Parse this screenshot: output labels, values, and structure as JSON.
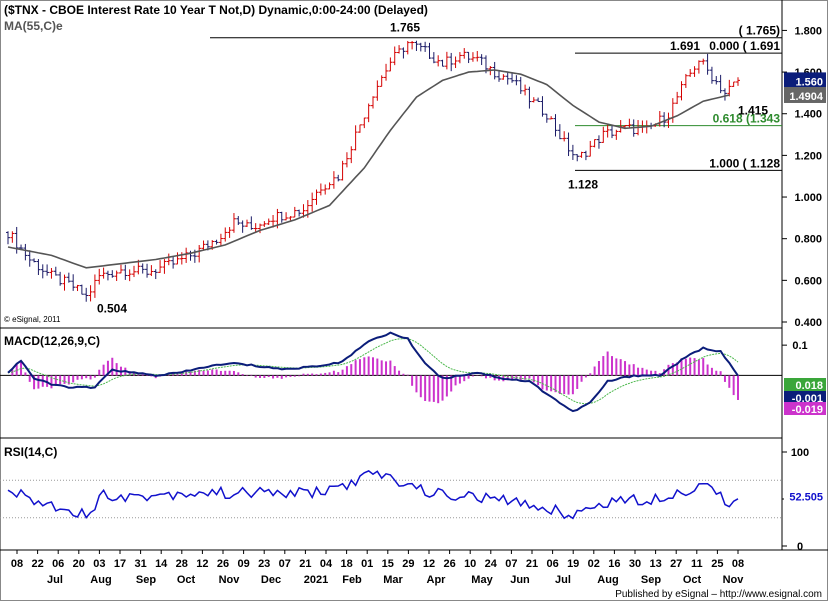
{
  "title": "($TNX - CBOE Interest Rate 10 Year T Not,D) Dynamic,0:00-24:00 (Delayed)",
  "ma_label": "MA(55,C)e",
  "macd_label": "MACD(12,26,9,C)",
  "rsi_label": "RSI(14,C)",
  "copyright": "© eSignal, 2011",
  "footer": "Published by eSignal – http://www.esignal.com",
  "colors": {
    "up": "#d40000",
    "down": "#1a1a66",
    "ma": "#555555",
    "macd": "#0b1d7a",
    "signal": "#4cb84c",
    "hist": "#cc33cc",
    "rsi": "#1111cc",
    "fib_top": "#000000",
    "fib_mid": "#2e8b2e",
    "fib_bot": "#000000"
  },
  "chart_data": [
    {
      "type": "candlestick",
      "name": "price",
      "ylim": [
        0.4,
        1.85
      ],
      "yticks": [
        "1.800",
        "1.600",
        "1.400",
        "1.200",
        "1.000",
        "0.800",
        "0.600",
        "0.400"
      ],
      "close_path": [
        [
          0,
          0.83
        ],
        [
          5,
          0.7
        ],
        [
          10,
          0.62
        ],
        [
          15,
          0.57
        ],
        [
          18,
          0.52
        ],
        [
          21,
          0.62
        ],
        [
          26,
          0.65
        ],
        [
          32,
          0.64
        ],
        [
          38,
          0.68
        ],
        [
          43,
          0.73
        ],
        [
          48,
          0.8
        ],
        [
          52,
          0.88
        ],
        [
          56,
          0.85
        ],
        [
          60,
          0.9
        ],
        [
          64,
          0.92
        ],
        [
          68,
          0.94
        ],
        [
          72,
          1.05
        ],
        [
          76,
          1.1
        ],
        [
          80,
          1.3
        ],
        [
          84,
          1.5
        ],
        [
          88,
          1.65
        ],
        [
          92,
          1.74
        ],
        [
          96,
          1.7
        ],
        [
          100,
          1.64
        ],
        [
          104,
          1.68
        ],
        [
          108,
          1.66
        ],
        [
          112,
          1.6
        ],
        [
          116,
          1.56
        ],
        [
          120,
          1.47
        ],
        [
          124,
          1.4
        ],
        [
          128,
          1.26
        ],
        [
          131,
          1.18
        ],
        [
          134,
          1.24
        ],
        [
          137,
          1.3
        ],
        [
          142,
          1.33
        ],
        [
          147,
          1.32
        ],
        [
          152,
          1.4
        ],
        [
          156,
          1.56
        ],
        [
          159,
          1.66
        ],
        [
          162,
          1.58
        ],
        [
          165,
          1.5
        ],
        [
          168,
          1.56
        ]
      ],
      "ma_path": [
        [
          0,
          0.76
        ],
        [
          10,
          0.72
        ],
        [
          18,
          0.66
        ],
        [
          26,
          0.68
        ],
        [
          34,
          0.7
        ],
        [
          42,
          0.73
        ],
        [
          50,
          0.77
        ],
        [
          58,
          0.84
        ],
        [
          66,
          0.89
        ],
        [
          74,
          0.96
        ],
        [
          82,
          1.14
        ],
        [
          88,
          1.32
        ],
        [
          94,
          1.48
        ],
        [
          100,
          1.56
        ],
        [
          106,
          1.6
        ],
        [
          112,
          1.61
        ],
        [
          118,
          1.59
        ],
        [
          124,
          1.54
        ],
        [
          130,
          1.44
        ],
        [
          136,
          1.36
        ],
        [
          142,
          1.33
        ],
        [
          148,
          1.34
        ],
        [
          154,
          1.39
        ],
        [
          160,
          1.46
        ],
        [
          166,
          1.49
        ]
      ],
      "last_price": "1.560",
      "ma_value": "1.4904",
      "annotations": [
        "1.765",
        "0.504",
        "1.128",
        "1.691",
        "1.415"
      ],
      "fib_levels": [
        {
          "text": "( 1.765)",
          "value": 1.765
        },
        {
          "text": "0.000 ( 1.691",
          "value": 1.691
        },
        {
          "text": "0.618 (1.343",
          "value": 1.343
        },
        {
          "text": "1.000 ( 1.128",
          "value": 1.128
        }
      ]
    },
    {
      "type": "line",
      "name": "MACD(12,26,9,C)",
      "ylim": [
        -0.2,
        0.15
      ],
      "yticks": [
        "0.1"
      ],
      "macd_path": [
        [
          0,
          0.01
        ],
        [
          3,
          0.05
        ],
        [
          6,
          -0.01
        ],
        [
          10,
          -0.03
        ],
        [
          15,
          -0.04
        ],
        [
          20,
          -0.04
        ],
        [
          24,
          0.02
        ],
        [
          28,
          0.01
        ],
        [
          34,
          0.0
        ],
        [
          40,
          0.01
        ],
        [
          46,
          0.03
        ],
        [
          52,
          0.04
        ],
        [
          58,
          0.03
        ],
        [
          64,
          0.02
        ],
        [
          70,
          0.03
        ],
        [
          76,
          0.04
        ],
        [
          80,
          0.08
        ],
        [
          84,
          0.12
        ],
        [
          88,
          0.14
        ],
        [
          92,
          0.12
        ],
        [
          96,
          0.04
        ],
        [
          100,
          -0.01
        ],
        [
          104,
          0.0
        ],
        [
          108,
          0.01
        ],
        [
          114,
          -0.01
        ],
        [
          120,
          -0.02
        ],
        [
          126,
          -0.08
        ],
        [
          130,
          -0.12
        ],
        [
          134,
          -0.09
        ],
        [
          138,
          -0.02
        ],
        [
          144,
          0.0
        ],
        [
          150,
          0.0
        ],
        [
          156,
          0.06
        ],
        [
          160,
          0.09
        ],
        [
          164,
          0.08
        ],
        [
          168,
          -0.002
        ]
      ],
      "signal_value": "0.018",
      "macd_value": "-0.001",
      "hist_value": "-0.019"
    },
    {
      "type": "line",
      "name": "RSI(14,C)",
      "ylim": [
        0,
        100
      ],
      "yticks": [
        "100",
        "50",
        "0"
      ],
      "levels": [
        70,
        30
      ],
      "rsi_path": [
        [
          0,
          60
        ],
        [
          4,
          52
        ],
        [
          8,
          45
        ],
        [
          14,
          40
        ],
        [
          18,
          33
        ],
        [
          22,
          55
        ],
        [
          30,
          52
        ],
        [
          36,
          55
        ],
        [
          44,
          57
        ],
        [
          52,
          56
        ],
        [
          60,
          57
        ],
        [
          66,
          56
        ],
        [
          72,
          58
        ],
        [
          78,
          65
        ],
        [
          84,
          77
        ],
        [
          88,
          72
        ],
        [
          92,
          66
        ],
        [
          96,
          58
        ],
        [
          100,
          55
        ],
        [
          104,
          53
        ],
        [
          108,
          52
        ],
        [
          114,
          48
        ],
        [
          120,
          44
        ],
        [
          126,
          38
        ],
        [
          130,
          33
        ],
        [
          134,
          40
        ],
        [
          140,
          50
        ],
        [
          146,
          48
        ],
        [
          152,
          55
        ],
        [
          158,
          62
        ],
        [
          162,
          65
        ],
        [
          166,
          45
        ],
        [
          168,
          52.5
        ]
      ],
      "rsi_value": "52.505"
    }
  ],
  "x_labels": [
    "08",
    "22",
    "06",
    "20",
    "03",
    "17",
    "31",
    "14",
    "28",
    "12",
    "26",
    "09",
    "23",
    "07",
    "21",
    "04",
    "18",
    "01",
    "15",
    "29",
    "12",
    "26",
    "10",
    "24",
    "07",
    "21",
    "06",
    "19",
    "02",
    "16",
    "30",
    "13",
    "27",
    "11",
    "25",
    "08"
  ],
  "month_labels": [
    "Jul",
    "Aug",
    "Sep",
    "Oct",
    "Nov",
    "Dec",
    "2021",
    "Feb",
    "Mar",
    "Apr",
    "May",
    "Jun",
    "Jul",
    "Aug",
    "Sep",
    "Oct",
    "Nov"
  ]
}
